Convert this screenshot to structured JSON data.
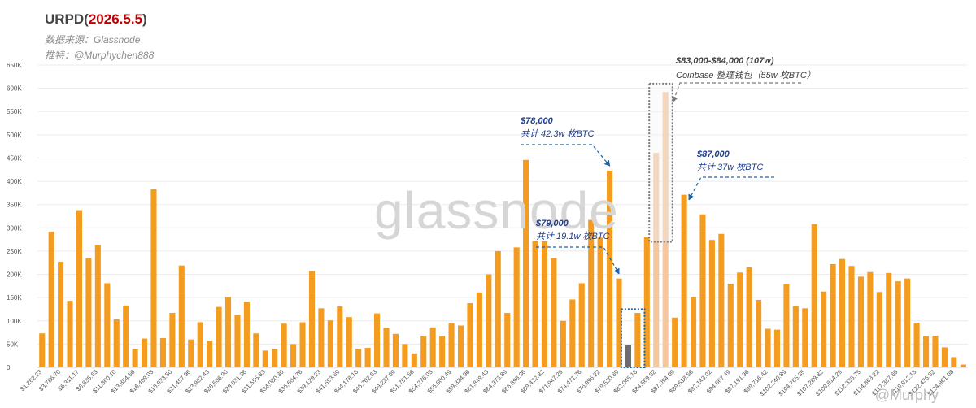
{
  "header": {
    "title_prefix": "URPD(",
    "title_date": "2026.5.5",
    "title_suffix": ")",
    "source": "数据来源：Glassnode",
    "twitter": "推特：@Murphychen888"
  },
  "watermark": "glassnode",
  "credit": "@Murphy",
  "annotations": {
    "a78_price": "$78,000",
    "a78_total": "共计 42.3w 枚BTC",
    "a79_price": "$79,000",
    "a79_total": "共计 19.1w 枚BTC",
    "a83_range": "$83,000-$84,000 (107w)",
    "a83_desc": "Coinbase 整理钱包（55w 枚BTC）",
    "a87_price": "$87,000",
    "a87_total": "共计 37w 枚BTC"
  },
  "colors": {
    "bar": "#f39c1f",
    "bar_light": "#f5c79e",
    "bar_dark": "#6d6d6d",
    "annotation_blue": "#1f63a8",
    "box_gray": "#7a7a7a"
  },
  "chart_data": {
    "type": "bar",
    "title": "URPD(2026.5.5)",
    "ylim": [
      0,
      650000
    ],
    "y_ticks": [
      "0",
      "50K",
      "100K",
      "150K",
      "200K",
      "250K",
      "300K",
      "350K",
      "400K",
      "450K",
      "500K",
      "550K",
      "600K",
      "650K"
    ],
    "grid": true,
    "x_tick_labels": [
      "$1,262.23",
      "$3,786.70",
      "$6,311.17",
      "$8,835.63",
      "$11,360.10",
      "$13,884.56",
      "$16,409.03",
      "$18,933.50",
      "$21,457.96",
      "$23,982.43",
      "$26,506.90",
      "$29,031.36",
      "$31,555.83",
      "$34,080.30",
      "$36,604.76",
      "$39,129.23",
      "$41,653.69",
      "$44,178.16",
      "$46,702.63",
      "$49,227.09",
      "$51,751.56",
      "$54,276.03",
      "$56,800.49",
      "$59,324.96",
      "$61,849.43",
      "$64,373.89",
      "$66,898.36",
      "$69,422.82",
      "$71,947.29",
      "$74,471.76",
      "$76,996.22",
      "$79,520.69",
      "$82,045.16",
      "$84,569.62",
      "$87,094.09",
      "$89,618.56",
      "$92,143.02",
      "$94,667.49",
      "$97,191.96",
      "$99,716.42",
      "$102,240.89",
      "$104,765.35",
      "$107,289.82",
      "$109,814.29",
      "$112,338.75",
      "$114,863.22",
      "$117,387.69",
      "$119,912.15",
      "$122,436.62",
      "$124,961.08"
    ],
    "values": [
      73000,
      292000,
      227000,
      143000,
      338000,
      235000,
      263000,
      181000,
      103000,
      133000,
      40000,
      62000,
      383000,
      63000,
      117000,
      219000,
      60000,
      97000,
      57000,
      130000,
      151000,
      113000,
      141000,
      73000,
      36000,
      40000,
      94000,
      50000,
      97000,
      207000,
      127000,
      101000,
      131000,
      108000,
      40000,
      42000,
      116000,
      85000,
      72000,
      50000,
      30000,
      68000,
      86000,
      68000,
      95000,
      90000,
      138000,
      161000,
      200000,
      250000,
      117000,
      258000,
      446000,
      272000,
      271000,
      235000,
      100000,
      146000,
      181000,
      317000,
      279000,
      423000,
      191000,
      48000,
      117000,
      280000,
      461000,
      592000,
      107000,
      371000,
      152000,
      329000,
      274000,
      287000,
      180000,
      204000,
      215000,
      145000,
      83000,
      81000,
      179000,
      132000,
      127000,
      308000,
      163000,
      222000,
      233000,
      218000,
      195000,
      205000,
      162000,
      203000,
      185000,
      191000,
      96000,
      67000,
      68000,
      43000,
      22000,
      6000
    ],
    "highlighted": {
      "dark_bars": [
        63
      ],
      "light_bars": [
        66,
        67
      ]
    }
  }
}
